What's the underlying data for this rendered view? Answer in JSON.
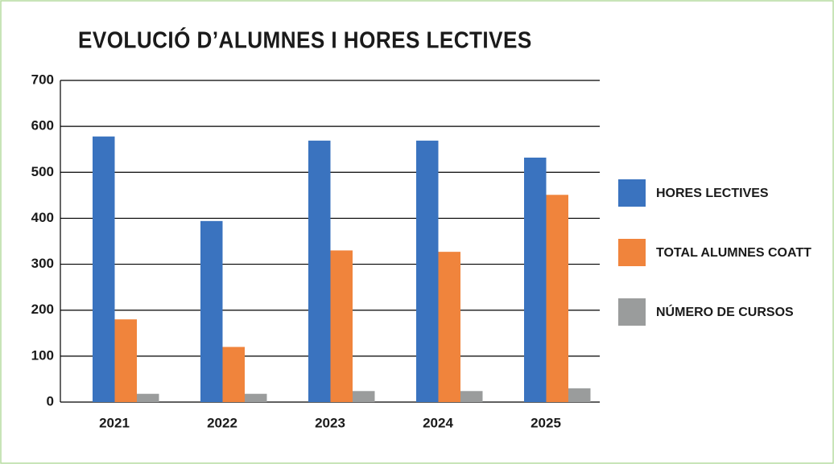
{
  "chart_data": {
    "type": "bar",
    "title": "EVOLUCIÓ D’ALUMNES I HORES LECTIVES",
    "categories": [
      "2021",
      "2022",
      "2023",
      "2024",
      "2025"
    ],
    "series": [
      {
        "name": "HORES LECTIVES",
        "color": "#3a73bf",
        "values": [
          578,
          394,
          569,
          569,
          532
        ]
      },
      {
        "name": "TOTAL ALUMNES COATT",
        "color": "#f0843c",
        "values": [
          180,
          120,
          330,
          327,
          451
        ]
      },
      {
        "name": "NÚMERO DE CURSOS",
        "color": "#9a9c9c",
        "values": [
          18,
          18,
          24,
          24,
          30
        ]
      }
    ],
    "ylim": [
      0,
      700
    ],
    "yticks": [
      0,
      100,
      200,
      300,
      400,
      500,
      600,
      700
    ],
    "grid": true,
    "legend": "right"
  }
}
